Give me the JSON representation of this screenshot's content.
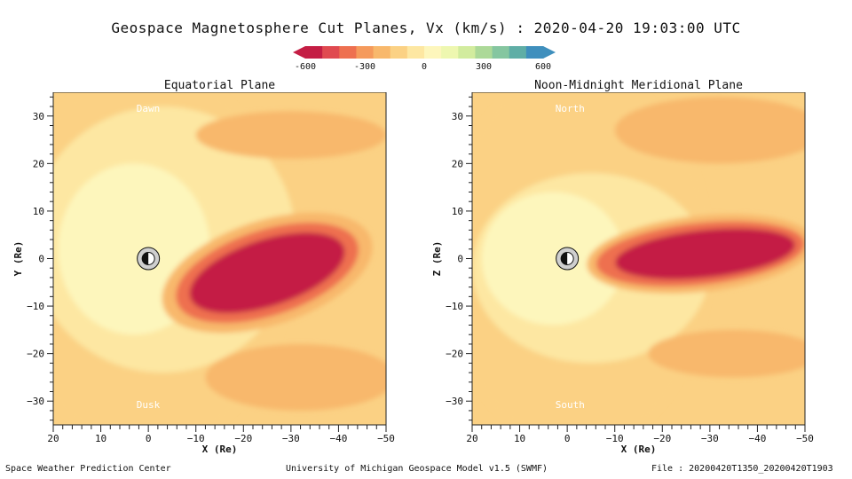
{
  "title": "Geospace Magnetosphere Cut Planes, Vx (km/s) : 2020-04-20 19:03:00 UTC",
  "colorbar": {
    "tick_labels": [
      "-600",
      "-300",
      "0",
      "300",
      "600"
    ],
    "tick_values": [
      -600,
      -300,
      0,
      300,
      600
    ],
    "range": [
      -600,
      600
    ],
    "colors": [
      "#c41e44",
      "#e04a50",
      "#ee7050",
      "#f59a5c",
      "#f8b86c",
      "#fbd184",
      "#fde7a2",
      "#fdf6bc",
      "#eef7b0",
      "#d2ec9e",
      "#acd998",
      "#85c6a0",
      "#5faea6",
      "#3f8fbd"
    ]
  },
  "footer": {
    "left": "Space Weather Prediction Center",
    "center": "University of Michigan Geospace Model v1.5 (SWMF)",
    "right": "File : 20200420T1350_20200420T1903"
  },
  "chart_data": [
    {
      "type": "heatmap",
      "title": "Equatorial Plane",
      "xlabel": "X (Re)",
      "ylabel": "Y (Re)",
      "xlim": [
        20,
        -50
      ],
      "ylim": [
        -35,
        35
      ],
      "xticks": [
        "20",
        "10",
        "0",
        "−10",
        "−20",
        "−30",
        "−40",
        "−50"
      ],
      "yticks": [
        "30",
        "20",
        "10",
        "0",
        "−10",
        "−20",
        "−30"
      ],
      "xtick_values": [
        20,
        10,
        0,
        -10,
        -20,
        -30,
        -40,
        -50
      ],
      "ytick_values": [
        30,
        20,
        10,
        0,
        -10,
        -20,
        -30
      ],
      "annotations": [
        "Dawn",
        "Dusk"
      ],
      "background_vx": -150,
      "features": [
        {
          "label": "",
          "cx": 0,
          "cy": 0,
          "rx": 30,
          "ry": 40,
          "vx": -100
        },
        {
          "label": "",
          "cx": -3,
          "cy": 4,
          "rx": 28,
          "ry": 28,
          "vx": -50
        },
        {
          "label": "",
          "cx": 3,
          "cy": 2,
          "rx": 16,
          "ry": 18,
          "vx": 0
        },
        {
          "label": "",
          "cx": -30,
          "cy": 26,
          "rx": 20,
          "ry": 5,
          "vx": -250
        },
        {
          "label": "",
          "cx": -32,
          "cy": -25,
          "rx": 20,
          "ry": 7,
          "vx": -250
        },
        {
          "label": "",
          "cx": -25,
          "cy": -3,
          "rx": 23,
          "ry": 11,
          "vx": -200,
          "rot": -18
        },
        {
          "label": "",
          "cx": -25,
          "cy": -3,
          "rx": 20,
          "ry": 9,
          "vx": -350,
          "rot": -18
        },
        {
          "label": "",
          "cx": -25,
          "cy": -3,
          "rx": 17,
          "ry": 7,
          "vx": -600,
          "rot": -18
        }
      ]
    },
    {
      "type": "heatmap",
      "title": "Noon-Midnight Meridional Plane",
      "xlabel": "X (Re)",
      "ylabel": "Z (Re)",
      "xlim": [
        20,
        -50
      ],
      "ylim": [
        -35,
        35
      ],
      "xticks": [
        "20",
        "10",
        "0",
        "−10",
        "−20",
        "−30",
        "−40",
        "−50"
      ],
      "yticks": [
        "30",
        "20",
        "10",
        "0",
        "−10",
        "−20",
        "−30"
      ],
      "xtick_values": [
        20,
        10,
        0,
        -10,
        -20,
        -30,
        -40,
        -50
      ],
      "ytick_values": [
        30,
        20,
        10,
        0,
        -10,
        -20,
        -30
      ],
      "annotations": [
        "North",
        "South"
      ],
      "background_vx": -150,
      "features": [
        {
          "label": "",
          "cx": -2,
          "cy": 0,
          "rx": 28,
          "ry": 40,
          "vx": -100
        },
        {
          "label": "",
          "cx": -5,
          "cy": -2,
          "rx": 25,
          "ry": 20,
          "vx": -50
        },
        {
          "label": "",
          "cx": 3,
          "cy": 0,
          "rx": 15,
          "ry": 14,
          "vx": 0
        },
        {
          "label": "",
          "cx": -32,
          "cy": 27,
          "rx": 22,
          "ry": 7,
          "vx": -250
        },
        {
          "label": "",
          "cx": -35,
          "cy": -20,
          "rx": 18,
          "ry": 5,
          "vx": -250
        },
        {
          "label": "",
          "cx": -28,
          "cy": 1,
          "rx": 24,
          "ry": 8,
          "vx": -200,
          "rot": -6
        },
        {
          "label": "",
          "cx": -28,
          "cy": 1,
          "rx": 22,
          "ry": 6.5,
          "vx": -350,
          "rot": -6
        },
        {
          "label": "",
          "cx": -29,
          "cy": 1,
          "rx": 19,
          "ry": 5,
          "vx": -600,
          "rot": -6
        }
      ]
    }
  ]
}
